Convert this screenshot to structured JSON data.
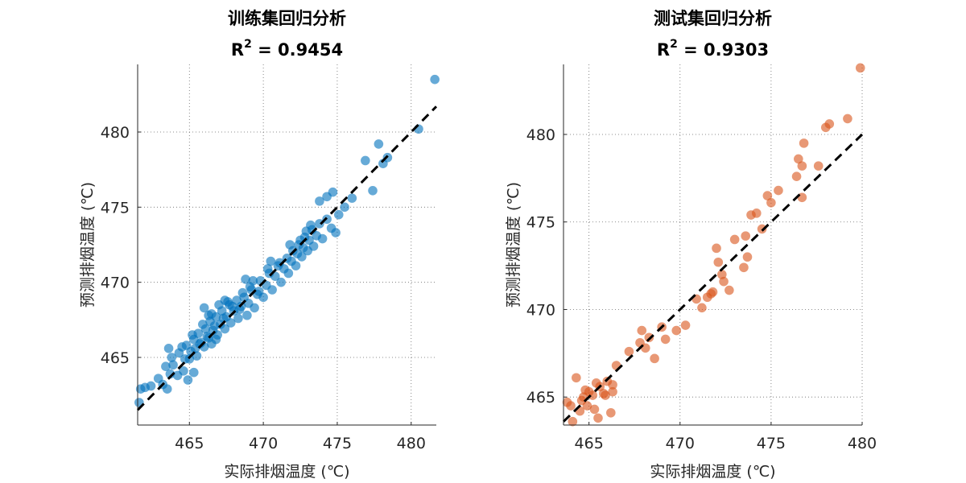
{
  "chart_data": [
    {
      "type": "scatter",
      "title": "训练集回归分析",
      "subtitle": {
        "base": "R",
        "sup": "2",
        "rest": " = 0.9454"
      },
      "xlabel": "实际排烟温度 (℃)",
      "ylabel": "预测排烟温度 (℃)",
      "xlim": [
        461.5,
        481.7
      ],
      "ylim": [
        460.5,
        484.5
      ],
      "xticks": [
        465,
        470,
        475,
        480
      ],
      "yticks": [
        465,
        470,
        475,
        480
      ],
      "grid": true,
      "color": "#0072BD",
      "fit_line": [
        [
          461.5,
          461.5
        ],
        [
          481.7,
          481.7
        ]
      ],
      "points": [
        [
          461.6,
          462.0
        ],
        [
          461.7,
          462.9
        ],
        [
          462.0,
          463.0
        ],
        [
          462.4,
          463.1
        ],
        [
          462.9,
          463.6
        ],
        [
          463.2,
          463.2
        ],
        [
          463.5,
          462.9
        ],
        [
          463.7,
          463.9
        ],
        [
          463.4,
          464.4
        ],
        [
          463.8,
          465.0
        ],
        [
          464.3,
          465.3
        ],
        [
          463.6,
          465.6
        ],
        [
          464.6,
          464.1
        ],
        [
          464.9,
          463.5
        ],
        [
          465.3,
          464.0
        ],
        [
          464.7,
          464.9
        ],
        [
          464.8,
          465.8
        ],
        [
          465.1,
          465.4
        ],
        [
          465.3,
          466.2
        ],
        [
          465.5,
          465.1
        ],
        [
          465.6,
          466.6
        ],
        [
          465.8,
          466.0
        ],
        [
          466.0,
          465.7
        ],
        [
          466.1,
          466.9
        ],
        [
          466.3,
          466.3
        ],
        [
          466.4,
          467.4
        ],
        [
          466.5,
          465.9
        ],
        [
          466.6,
          466.8
        ],
        [
          466.8,
          467.7
        ],
        [
          466.9,
          466.5
        ],
        [
          467.1,
          467.2
        ],
        [
          467.2,
          468.1
        ],
        [
          467.4,
          466.9
        ],
        [
          467.5,
          467.7
        ],
        [
          467.7,
          468.5
        ],
        [
          467.8,
          467.3
        ],
        [
          468.0,
          468.1
        ],
        [
          468.2,
          468.8
        ],
        [
          468.3,
          467.6
        ],
        [
          468.5,
          468.4
        ],
        [
          468.7,
          469.0
        ],
        [
          468.9,
          467.8
        ],
        [
          469.0,
          468.6
        ],
        [
          469.2,
          469.5
        ],
        [
          469.4,
          468.3
        ],
        [
          469.6,
          469.2
        ],
        [
          469.8,
          470.1
        ],
        [
          470.0,
          469.0
        ],
        [
          470.2,
          469.8
        ],
        [
          470.4,
          470.6
        ],
        [
          470.6,
          469.5
        ],
        [
          470.8,
          470.4
        ],
        [
          471.0,
          471.1
        ],
        [
          471.2,
          470.0
        ],
        [
          471.4,
          470.9
        ],
        [
          471.6,
          471.6
        ],
        [
          471.7,
          470.6
        ],
        [
          471.9,
          471.4
        ],
        [
          472.0,
          472.1
        ],
        [
          472.2,
          471.1
        ],
        [
          472.3,
          471.9
        ],
        [
          472.4,
          472.5
        ],
        [
          472.6,
          471.7
        ],
        [
          472.7,
          472.3
        ],
        [
          472.8,
          473.0
        ],
        [
          473.0,
          472.1
        ],
        [
          473.1,
          472.8
        ],
        [
          473.3,
          473.5
        ],
        [
          473.4,
          472.4
        ],
        [
          473.6,
          473.1
        ],
        [
          473.8,
          473.9
        ],
        [
          474.0,
          472.9
        ],
        [
          474.3,
          474.2
        ],
        [
          474.6,
          473.6
        ],
        [
          474.9,
          473.3
        ],
        [
          475.1,
          474.5
        ],
        [
          474.7,
          476.0
        ],
        [
          474.3,
          475.7
        ],
        [
          473.8,
          475.4
        ],
        [
          475.5,
          475.0
        ],
        [
          476.0,
          475.6
        ],
        [
          476.9,
          478.1
        ],
        [
          477.4,
          476.1
        ],
        [
          477.8,
          479.2
        ],
        [
          478.1,
          477.9
        ],
        [
          478.4,
          478.3
        ],
        [
          480.5,
          480.2
        ],
        [
          481.6,
          483.5
        ],
        [
          465.0,
          464.9
        ],
        [
          465.7,
          465.9
        ],
        [
          466.2,
          466.4
        ],
        [
          466.7,
          467.1
        ],
        [
          467.3,
          467.6
        ],
        [
          467.9,
          468.4
        ],
        [
          468.4,
          468.2
        ],
        [
          469.1,
          469.7
        ],
        [
          466.0,
          468.3
        ],
        [
          466.5,
          467.9
        ],
        [
          467.0,
          468.5
        ],
        [
          467.6,
          468.7
        ],
        [
          468.8,
          470.2
        ],
        [
          469.3,
          470.1
        ],
        [
          469.7,
          469.4
        ],
        [
          470.3,
          470.9
        ],
        [
          471.1,
          471.3
        ],
        [
          472.5,
          472.8
        ],
        [
          473.2,
          473.8
        ],
        [
          471.8,
          472.5
        ],
        [
          472.9,
          473.4
        ],
        [
          465.9,
          467.2
        ],
        [
          466.3,
          467.8
        ],
        [
          464.5,
          465.7
        ],
        [
          465.2,
          466.5
        ],
        [
          467.4,
          468.8
        ],
        [
          465.4,
          465.6
        ],
        [
          466.8,
          466.2
        ],
        [
          468.6,
          469.3
        ],
        [
          470.5,
          471.4
        ],
        [
          463.9,
          464.5
        ],
        [
          464.2,
          463.8
        ]
      ]
    },
    {
      "type": "scatter",
      "title": "测试集回归分析",
      "subtitle": {
        "base": "R",
        "sup": "2",
        "rest": " = 0.9303"
      },
      "xlabel": "实际排烟温度 (℃)",
      "ylabel": "预测排烟温度 (℃)",
      "xlim": [
        463.6,
        480.0
      ],
      "ylim": [
        463.4,
        484.0
      ],
      "xticks": [
        465,
        470,
        475,
        480
      ],
      "yticks": [
        465,
        470,
        475,
        480
      ],
      "grid": true,
      "color": "#D95319",
      "fit_line": [
        [
          463.6,
          463.6
        ],
        [
          480.0,
          480.0
        ]
      ],
      "points": [
        [
          463.8,
          464.7
        ],
        [
          464.1,
          463.6
        ],
        [
          464.3,
          466.1
        ],
        [
          464.5,
          464.2
        ],
        [
          464.6,
          464.8
        ],
        [
          464.7,
          465.0
        ],
        [
          464.9,
          464.5
        ],
        [
          465.0,
          465.3
        ],
        [
          465.2,
          465.1
        ],
        [
          465.3,
          464.3
        ],
        [
          465.4,
          465.8
        ],
        [
          465.5,
          463.8
        ],
        [
          465.6,
          465.6
        ],
        [
          465.8,
          465.2
        ],
        [
          466.0,
          465.9
        ],
        [
          466.2,
          464.1
        ],
        [
          466.3,
          465.7
        ],
        [
          466.5,
          466.8
        ],
        [
          466.3,
          465.3
        ],
        [
          467.2,
          467.6
        ],
        [
          467.8,
          468.1
        ],
        [
          467.9,
          468.8
        ],
        [
          468.1,
          467.8
        ],
        [
          468.3,
          468.4
        ],
        [
          468.6,
          467.2
        ],
        [
          469.0,
          469.0
        ],
        [
          469.2,
          468.3
        ],
        [
          469.8,
          468.8
        ],
        [
          470.3,
          469.1
        ],
        [
          470.9,
          470.6
        ],
        [
          471.2,
          470.1
        ],
        [
          471.5,
          470.7
        ],
        [
          471.8,
          471.0
        ],
        [
          472.0,
          473.5
        ],
        [
          472.1,
          472.7
        ],
        [
          472.4,
          471.6
        ],
        [
          472.7,
          471.1
        ],
        [
          473.0,
          474.0
        ],
        [
          473.5,
          472.4
        ],
        [
          473.6,
          474.2
        ],
        [
          473.9,
          475.4
        ],
        [
          474.2,
          475.5
        ],
        [
          474.5,
          474.6
        ],
        [
          474.8,
          476.5
        ],
        [
          475.0,
          476.1
        ],
        [
          475.4,
          476.8
        ],
        [
          476.4,
          477.6
        ],
        [
          476.5,
          478.6
        ],
        [
          476.7,
          478.2
        ],
        [
          476.8,
          479.5
        ],
        [
          477.6,
          478.2
        ],
        [
          478.0,
          480.4
        ],
        [
          478.2,
          480.6
        ],
        [
          479.2,
          480.9
        ],
        [
          479.9,
          483.8
        ],
        [
          464.0,
          464.5
        ],
        [
          464.8,
          465.4
        ],
        [
          465.9,
          465.1
        ],
        [
          476.7,
          476.4
        ],
        [
          473.7,
          473.0
        ],
        [
          472.3,
          472.0
        ],
        [
          471.7,
          470.9
        ]
      ]
    }
  ]
}
